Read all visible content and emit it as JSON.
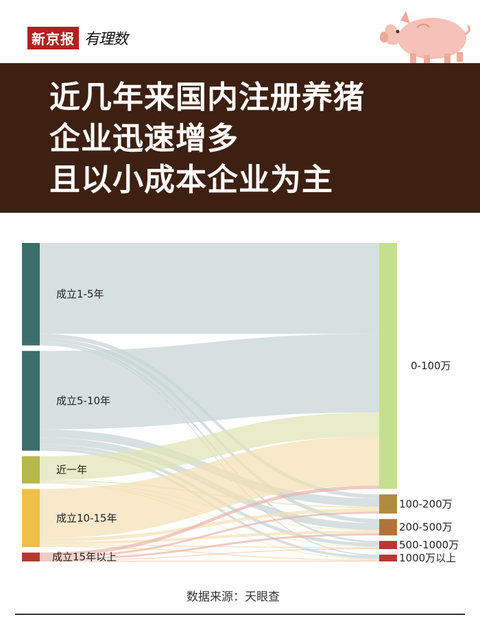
{
  "brand": {
    "box_text": "新京报",
    "script_text": "有理数"
  },
  "title_lines": [
    "近几年来国内注册养猪",
    "企业迅速增多",
    "且以小成本企业为主"
  ],
  "source_text": "数据来源：天眼查",
  "chart_data": {
    "type": "sankey",
    "sources": [
      {
        "label": "成立1-5年",
        "color": "#3d6e6e"
      },
      {
        "label": "成立5-10年",
        "color": "#3d6e6e"
      },
      {
        "label": "近一年",
        "color": "#b5b84a"
      },
      {
        "label": "成立10-15年",
        "color": "#eec048"
      },
      {
        "label": "成立15年以上",
        "color": "#b33a32"
      }
    ],
    "targets": [
      {
        "label": "0-100万",
        "color": "#c4df8e"
      },
      {
        "label": "100-200万",
        "color": "#b08a3e"
      },
      {
        "label": "200-500万",
        "color": "#b3723c"
      },
      {
        "label": "500-1000万",
        "color": "#b33a32"
      },
      {
        "label": "1000万以上",
        "color": "#b33a32"
      }
    ],
    "flows": [
      [
        0,
        0,
        133
      ],
      [
        0,
        1,
        6
      ],
      [
        0,
        2,
        6
      ],
      [
        0,
        3,
        3
      ],
      [
        0,
        4,
        2
      ],
      [
        1,
        0,
        115
      ],
      [
        1,
        1,
        12
      ],
      [
        1,
        2,
        10
      ],
      [
        1,
        3,
        5
      ],
      [
        1,
        4,
        4
      ],
      [
        2,
        0,
        35
      ],
      [
        2,
        1,
        2
      ],
      [
        2,
        2,
        1
      ],
      [
        2,
        3,
        1
      ],
      [
        2,
        4,
        1
      ],
      [
        3,
        0,
        72
      ],
      [
        3,
        1,
        5
      ],
      [
        3,
        2,
        4
      ],
      [
        3,
        3,
        2
      ],
      [
        3,
        4,
        2
      ],
      [
        4,
        0,
        5
      ],
      [
        4,
        1,
        3
      ],
      [
        4,
        2,
        3
      ],
      [
        4,
        3,
        1
      ],
      [
        4,
        4,
        1
      ]
    ]
  }
}
